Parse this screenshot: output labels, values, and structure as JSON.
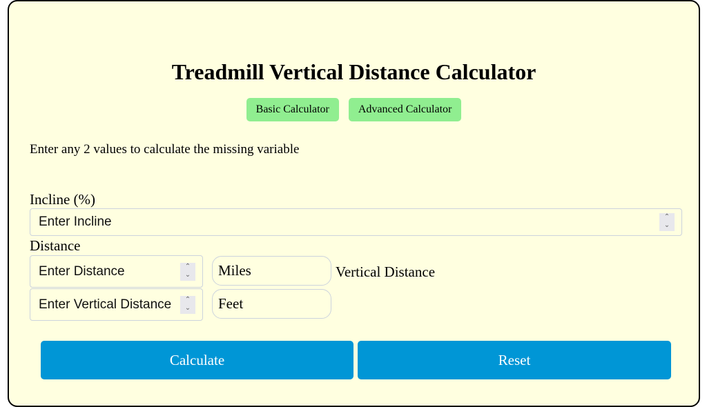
{
  "title": "Treadmill Vertical Distance Calculator",
  "tabs": [
    {
      "label": "Basic Calculator"
    },
    {
      "label": "Advanced Calculator"
    }
  ],
  "instruction": "Enter any 2 values to calculate the missing variable",
  "incline": {
    "label": "Incline (%)",
    "placeholder": "Enter Incline"
  },
  "distance": {
    "label": "Distance",
    "placeholder": "Enter Distance",
    "unit": "Miles"
  },
  "vertical": {
    "label": "Vertical Distance",
    "placeholder": "Enter Vertical Distance",
    "unit": "Feet"
  },
  "buttons": {
    "calculate": "Calculate",
    "reset": "Reset"
  },
  "colors": {
    "background": "#ffffe0",
    "tab": "#90ee90",
    "button": "#0096d6"
  }
}
